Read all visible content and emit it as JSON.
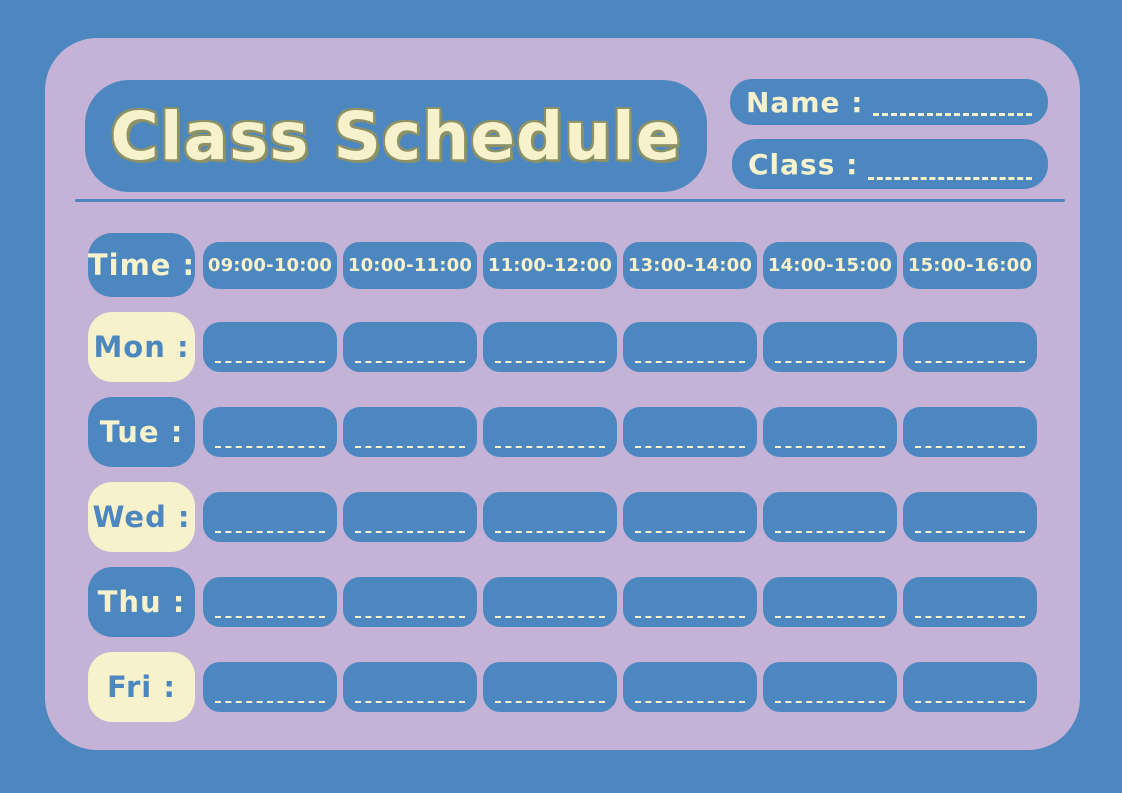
{
  "colors": {
    "background_blue": "#4D87BF",
    "card_purple": "#C4B3D7",
    "cream": "#F7F2CC",
    "title_outline_olive": "#8C9166"
  },
  "header": {
    "title": "Class Schedule",
    "name_label": "Name :",
    "name_value": "",
    "class_label": "Class :",
    "class_value": ""
  },
  "schedule": {
    "time_label": "Time :",
    "time_slots": [
      "09:00-10:00",
      "10:00-11:00",
      "11:00-12:00",
      "13:00-14:00",
      "14:00-15:00",
      "15:00-16:00"
    ],
    "days": [
      {
        "label": "Mon :",
        "style": "cream"
      },
      {
        "label": "Tue :",
        "style": "blue"
      },
      {
        "label": "Wed :",
        "style": "cream"
      },
      {
        "label": "Thu :",
        "style": "blue"
      },
      {
        "label": "Fri :",
        "style": "cream"
      }
    ],
    "cell_values": [
      [
        "",
        "",
        "",
        "",
        "",
        ""
      ],
      [
        "",
        "",
        "",
        "",
        "",
        ""
      ],
      [
        "",
        "",
        "",
        "",
        "",
        ""
      ],
      [
        "",
        "",
        "",
        "",
        "",
        ""
      ],
      [
        "",
        "",
        "",
        "",
        "",
        ""
      ]
    ]
  }
}
